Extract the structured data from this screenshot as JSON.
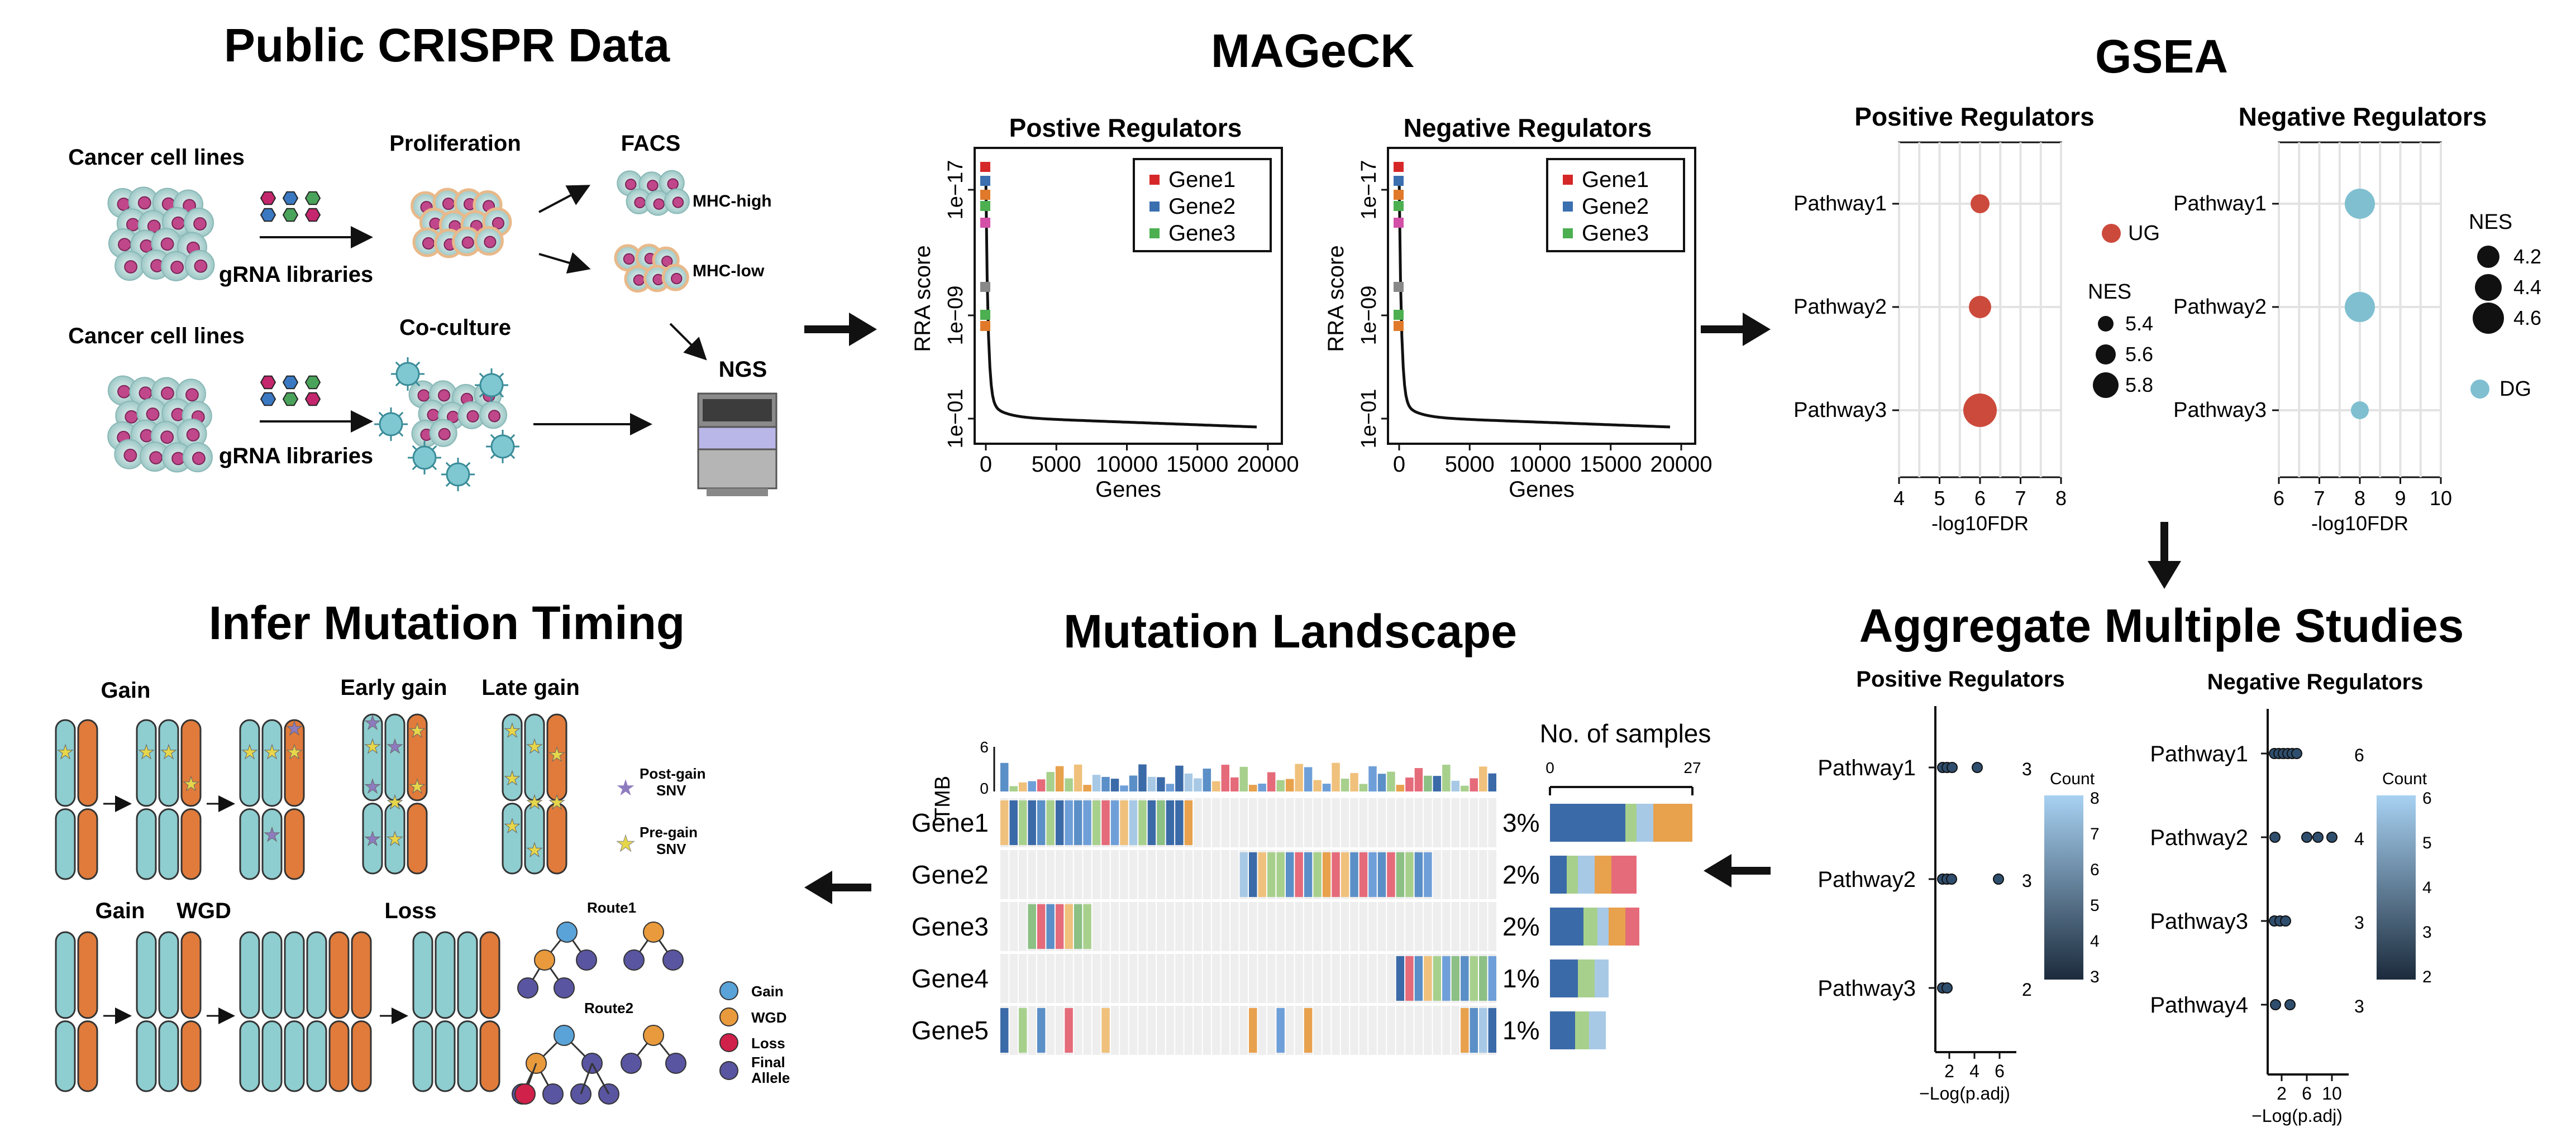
{
  "sections": {
    "crispr": "Public CRISPR Data",
    "mageck": "MAGeCK",
    "gsea": "GSEA",
    "aggregate": "Aggregate Multiple Studies",
    "landscape": "Mutation Landscape",
    "timing": "Infer Mutation Timing"
  },
  "crispr": {
    "row1_cells": "Cancer cell lines",
    "row1_libraries": "gRNA libraries",
    "proliferation": "Proliferation",
    "facs": "FACS",
    "mhc_high": "MHC-high",
    "mhc_low": "MHC-low",
    "row2_cells": "Cancer cell lines",
    "row2_libraries": "gRNA libraries",
    "coculture": "Co-culture",
    "ngs": "NGS"
  },
  "mageck": {
    "pos_title": "Postive Regulators",
    "neg_title": "Negative Regulators",
    "ylabel": "RRA score",
    "xlabel": "Genes",
    "ytick_labels": [
      "1e−17",
      "1e−09",
      "1e−01"
    ],
    "xtick_labels": [
      "0",
      "5000",
      "10000",
      "15000",
      "20000"
    ],
    "legend": [
      "Gene1",
      "Gene2",
      "Gene3"
    ],
    "legend_colors": [
      "#d62728",
      "#3a6fb0",
      "#4caf50"
    ]
  },
  "gsea": {
    "pos_title": "Positive Regulators",
    "neg_title": "Negative Regulators",
    "pathways": [
      "Pathway1",
      "Pathway2",
      "Pathway3"
    ],
    "pos_xticks": [
      "4",
      "5",
      "6",
      "7",
      "8"
    ],
    "neg_xticks": [
      "6",
      "7",
      "8",
      "9",
      "10"
    ],
    "xlabel": "-log10FDR",
    "pos_legend_ug": "UG",
    "pos_nes_title": "NES",
    "pos_nes_values": [
      "5.4",
      "5.6",
      "5.8"
    ],
    "neg_nes_title": "NES",
    "neg_nes_values": [
      "4.2",
      "4.4",
      "4.6"
    ],
    "neg_legend_dg": "DG",
    "ug_color": "#cc4a3c",
    "dg_color": "#7fbfd0"
  },
  "aggregate": {
    "pos_title": "Positive Regulators",
    "neg_title": "Negative Regulators",
    "pos_pathways": [
      "Pathway1",
      "Pathway2",
      "Pathway3"
    ],
    "pos_counts": [
      "3",
      "3",
      "2"
    ],
    "neg_pathways": [
      "Pathway1",
      "Pathway2",
      "Pathway3",
      "Pathway4"
    ],
    "neg_counts": [
      "6",
      "4",
      "3",
      "3"
    ],
    "pos_xticks": [
      "2",
      "4",
      "6"
    ],
    "neg_xticks": [
      "2",
      "6",
      "10"
    ],
    "xlabel": "−Log(p.adj)",
    "count_title": "Count",
    "pos_count_ticks": [
      "8",
      "7",
      "6",
      "5",
      "4",
      "3"
    ],
    "neg_count_ticks": [
      "6",
      "5",
      "4",
      "3",
      "2"
    ]
  },
  "landscape": {
    "tmb_label": "TMB",
    "tmb_ticks": [
      "6",
      "0"
    ],
    "genes": [
      "Gene1",
      "Gene2",
      "Gene3",
      "Gene4",
      "Gene5"
    ],
    "percents": [
      "3%",
      "2%",
      "2%",
      "1%",
      "1%"
    ],
    "samples_title": "No. of samples",
    "samples_ticks": [
      "0",
      "27"
    ]
  },
  "timing": {
    "gain": "Gain",
    "early_gain": "Early gain",
    "late_gain": "Late gain",
    "post_gain": "Post-gain",
    "post_gain2": "SNV",
    "pre_gain": "Pre-gain",
    "pre_gain2": "SNV",
    "gain2": "Gain",
    "wgd": "WGD",
    "loss": "Loss",
    "route1": "Route1",
    "route2": "Route2",
    "legend": [
      "Gain",
      "WGD",
      "Loss",
      "Final",
      "Allele"
    ],
    "legend_colors": [
      "#5aa3d8",
      "#e89a3c",
      "#d0214a",
      "#5a55a0"
    ]
  }
}
